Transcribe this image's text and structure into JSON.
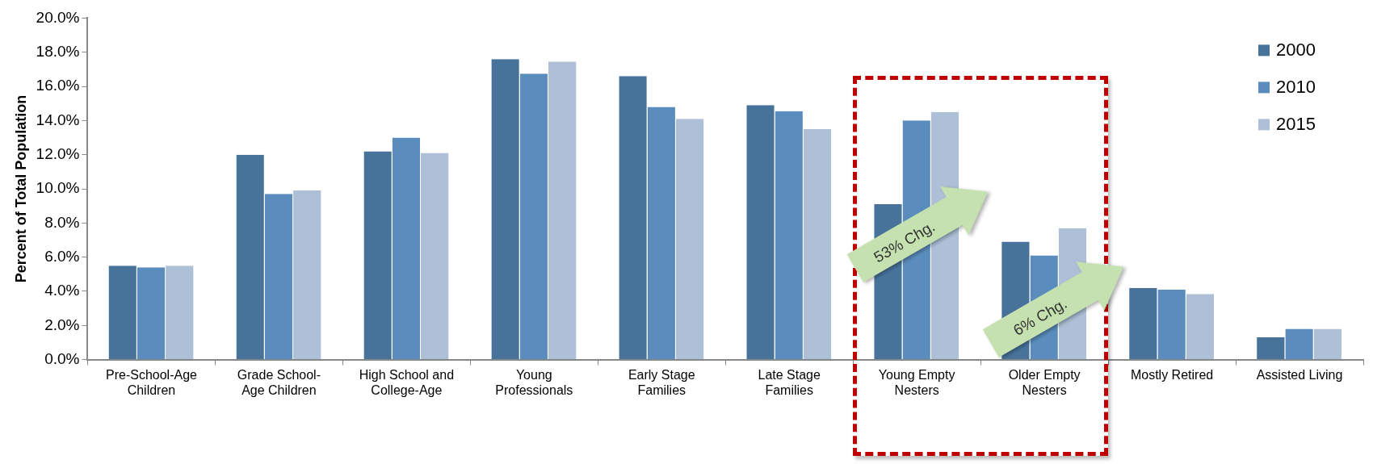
{
  "chart_data": {
    "type": "bar",
    "ylabel": "Percent of Total Population",
    "categories": [
      "Pre-School-Age Children",
      "Grade School-Age Children",
      "High School and College-Age",
      "Young Professionals",
      "Early Stage Families",
      "Late Stage Families",
      "Young Empty Nesters",
      "Older Empty Nesters",
      "Mostly Retired",
      "Assisted Living"
    ],
    "series": [
      {
        "name": "2000",
        "color": "#47739b",
        "values": [
          5.5,
          12.0,
          12.2,
          17.6,
          16.6,
          14.9,
          9.1,
          6.9,
          4.2,
          1.3
        ]
      },
      {
        "name": "2010",
        "color": "#5a8dbd",
        "values": [
          5.4,
          9.7,
          13.0,
          16.75,
          14.8,
          14.55,
          14.0,
          6.1,
          4.1,
          1.8
        ]
      },
      {
        "name": "2015",
        "color": "#adc0d7",
        "values": [
          5.5,
          9.9,
          12.1,
          17.45,
          14.1,
          13.5,
          14.5,
          7.7,
          3.85,
          1.8
        ]
      }
    ],
    "ylim": [
      0,
      20
    ],
    "yticks": [
      {
        "value": 0,
        "label": "0.0%"
      },
      {
        "value": 2,
        "label": "2.0%"
      },
      {
        "value": 4,
        "label": "4.0%"
      },
      {
        "value": 6,
        "label": "6.0%"
      },
      {
        "value": 8,
        "label": "8.0%"
      },
      {
        "value": 10,
        "label": "10.0%"
      },
      {
        "value": 12,
        "label": "12.0%"
      },
      {
        "value": 14,
        "label": "14.0%"
      },
      {
        "value": 16,
        "label": "16.0%"
      },
      {
        "value": 18,
        "label": "18.0%"
      },
      {
        "value": 20,
        "label": "20.0%"
      }
    ],
    "grid": false,
    "legend": "top right",
    "annotations": [
      "53% Chg.",
      "6% Chg."
    ]
  }
}
